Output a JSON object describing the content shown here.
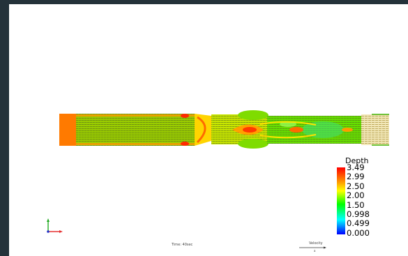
{
  "legend": {
    "title": "Depth",
    "labels": [
      "3.49",
      "2.99",
      "2.50",
      "2.00",
      "1.50",
      "0.998",
      "0.499",
      "0.000"
    ]
  },
  "time_label": "Time: 40sec",
  "velocity": {
    "label": "Velocity",
    "value": "a"
  },
  "axes": {
    "x_color": "#e53030",
    "y_color": "#22aa22",
    "z_color": "#2233cc"
  },
  "colors": {
    "frame": "#24323a",
    "viewport": "#ffffff",
    "legend_gradient": [
      "#ff0000",
      "#ff8800",
      "#ffff00",
      "#00ff00",
      "#00ffff",
      "#0000ff"
    ]
  }
}
